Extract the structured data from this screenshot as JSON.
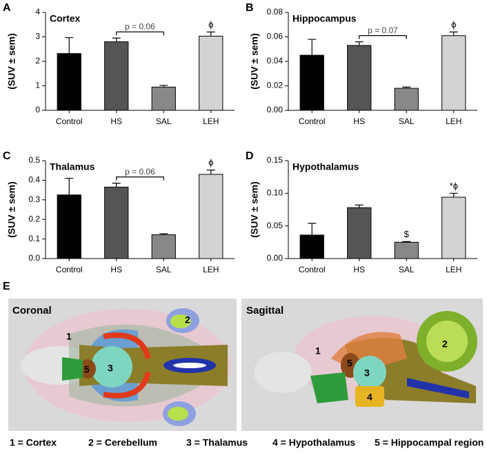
{
  "chart_data": [
    {
      "type": "bar",
      "panel": "A",
      "title": "Cortex",
      "ylabel": "(SUV ± sem)",
      "categories": [
        "Control",
        "HS",
        "SAL",
        "LEH"
      ],
      "values": [
        2.32,
        2.8,
        0.95,
        3.03
      ],
      "errors": [
        0.65,
        0.15,
        0.07,
        0.17
      ],
      "colors": [
        "#000000",
        "#555555",
        "#888888",
        "#d3d3d3"
      ],
      "ylim": [
        0,
        4
      ],
      "yticks": [
        0,
        1,
        2,
        3,
        4
      ],
      "markers": [
        null,
        null,
        null,
        "ϕ"
      ],
      "bracket": {
        "label": "p = 0.06",
        "from": "HS",
        "to": "SAL"
      }
    },
    {
      "type": "bar",
      "panel": "B",
      "title": "Hippocampus",
      "ylabel": "(SUV ± sem)",
      "categories": [
        "Control",
        "HS",
        "SAL",
        "LEH"
      ],
      "values": [
        0.045,
        0.053,
        0.018,
        0.061
      ],
      "errors": [
        0.013,
        0.003,
        0.001,
        0.003
      ],
      "colors": [
        "#000000",
        "#555555",
        "#888888",
        "#d3d3d3"
      ],
      "ylim": [
        0,
        0.08
      ],
      "yticks": [
        {
          "value": 0,
          "label": "0.00"
        },
        0.02,
        0.04,
        0.06,
        0.08
      ],
      "markers": [
        null,
        null,
        null,
        "ϕ"
      ],
      "bracket": {
        "label": "p = 0.07",
        "from": "HS",
        "to": "SAL"
      }
    },
    {
      "type": "bar",
      "panel": "C",
      "title": "Thalamus",
      "ylabel": "(SUV ± sem)",
      "categories": [
        "Control",
        "HS",
        "SAL",
        "LEH"
      ],
      "values": [
        0.325,
        0.365,
        0.122,
        0.43
      ],
      "errors": [
        0.085,
        0.02,
        0.005,
        0.022
      ],
      "colors": [
        "#000000",
        "#555555",
        "#888888",
        "#d3d3d3"
      ],
      "ylim": [
        0,
        0.5
      ],
      "yticks": [
        {
          "value": 0,
          "label": "0.0"
        },
        0.1,
        0.2,
        0.3,
        0.4,
        0.5
      ],
      "markers": [
        null,
        null,
        null,
        "ϕ"
      ],
      "bracket": {
        "label": "p = 0.06",
        "from": "HS",
        "to": "SAL"
      }
    },
    {
      "type": "bar",
      "panel": "D",
      "title": "Hypothalamus",
      "ylabel": "(SUV ± sem)",
      "categories": [
        "Control",
        "HS",
        "SAL",
        "LEH"
      ],
      "values": [
        0.036,
        0.078,
        0.025,
        0.094
      ],
      "errors": [
        0.018,
        0.004,
        0.001,
        0.006
      ],
      "colors": [
        "#000000",
        "#555555",
        "#888888",
        "#d3d3d3"
      ],
      "ylim": [
        0,
        0.15
      ],
      "yticks": [
        {
          "value": 0,
          "label": "0.00"
        },
        0.05,
        {
          "value": 0.1,
          "label": "0.10"
        },
        0.15
      ],
      "markers": [
        null,
        null,
        "$",
        "*ϕ"
      ]
    }
  ],
  "panel_e": {
    "label": "E",
    "coronal": {
      "title": "Coronal",
      "numbers": [
        "1",
        "2",
        "3",
        "5"
      ]
    },
    "sagittal": {
      "title": "Sagittal",
      "numbers": [
        "1",
        "2",
        "3",
        "4",
        "5"
      ]
    },
    "legend": [
      "1 = Cortex",
      "2 = Cerebellum",
      "3 = Thalamus",
      "4 = Hypothalamus",
      "5 = Hippocampal region"
    ]
  }
}
